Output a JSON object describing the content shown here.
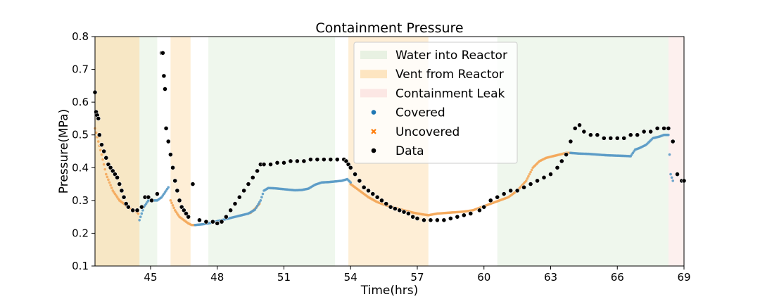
{
  "chart_data": {
    "type": "scatter",
    "title": "Containment Pressure",
    "xlabel": "Time(hrs)",
    "ylabel": "Pressure(MPa)",
    "xlim": [
      42.5,
      69
    ],
    "ylim": [
      0.1,
      0.8
    ],
    "xticks": [
      45,
      48,
      51,
      54,
      57,
      60,
      63,
      66,
      69
    ],
    "yticks": [
      0.1,
      0.2,
      0.3,
      0.4,
      0.5,
      0.6,
      0.7,
      0.8
    ],
    "grid": false,
    "legend_position": "top-center",
    "regions": [
      {
        "name": "Water into Reactor",
        "color": "#cde5c8",
        "spans": [
          [
            44.5,
            45.3
          ],
          [
            47.6,
            53.3
          ],
          [
            60.6,
            68.3
          ]
        ]
      },
      {
        "name": "Vent from Reactor",
        "color": "#fbc97f",
        "spans": [
          [
            42.5,
            44.5
          ],
          [
            45.9,
            46.8
          ],
          [
            53.9,
            57.5
          ]
        ]
      },
      {
        "name": "Containment Leak",
        "color": "#f8cfcb",
        "spans": [
          [
            68.3,
            69
          ]
        ]
      }
    ],
    "region_overlap": {
      "span": [
        42.5,
        44.5
      ],
      "color": "#f1e2b8"
    },
    "series": [
      {
        "name": "Covered",
        "marker": "circle",
        "color": "#1f77b4",
        "segments": [
          {
            "x": [
              44.5,
              44.7,
              44.9,
              45.1,
              45.3,
              45.5,
              45.7,
              45.8
            ],
            "y": [
              0.24,
              0.28,
              0.3,
              0.3,
              0.3,
              0.31,
              0.33,
              0.34
            ]
          },
          {
            "x": [
              47.0,
              47.3,
              47.6,
              47.9,
              48.2,
              48.5,
              48.8,
              49.1,
              49.4,
              49.7,
              49.95,
              50.1,
              50.3,
              50.6,
              50.9,
              51.2,
              51.5,
              51.8,
              52.1,
              52.4,
              52.7,
              53.0,
              53.3,
              53.6,
              53.85,
              54.0
            ],
            "y": [
              0.225,
              0.227,
              0.23,
              0.235,
              0.24,
              0.245,
              0.25,
              0.255,
              0.26,
              0.272,
              0.3,
              0.33,
              0.338,
              0.337,
              0.335,
              0.333,
              0.331,
              0.332,
              0.336,
              0.348,
              0.355,
              0.356,
              0.358,
              0.36,
              0.365,
              0.355
            ]
          },
          {
            "x": [
              63.9,
              64.3,
              64.7,
              65.1,
              65.5,
              65.9,
              66.3,
              66.6,
              66.8,
              67.0,
              67.3,
              67.6,
              67.9,
              68.1,
              68.3,
              68.4,
              68.5
            ],
            "y": [
              0.445,
              0.443,
              0.442,
              0.44,
              0.438,
              0.437,
              0.436,
              0.435,
              0.455,
              0.46,
              0.47,
              0.49,
              0.495,
              0.5,
              0.5,
              0.38,
              0.36
            ]
          }
        ]
      },
      {
        "name": "Uncovered",
        "marker": "x",
        "color": "#ff7f0e",
        "segments": [
          {
            "x": [
              42.5,
              42.8,
              43.0,
              43.3,
              43.6,
              43.9,
              44.1,
              44.3,
              44.45
            ],
            "y": [
              0.52,
              0.44,
              0.38,
              0.33,
              0.3,
              0.285,
              0.275,
              0.27,
              0.26
            ]
          },
          {
            "x": [
              45.9,
              46.1,
              46.3,
              46.5,
              46.7,
              46.85,
              47.0
            ],
            "y": [
              0.3,
              0.27,
              0.25,
              0.24,
              0.23,
              0.225,
              0.225
            ]
          },
          {
            "x": [
              49.5,
              49.7,
              49.9
            ],
            "y": [
              0.262,
              0.275,
              0.29
            ]
          },
          {
            "x": [
              54.0,
              54.4,
              54.8,
              55.2,
              55.6,
              56.0,
              56.4,
              56.8,
              57.2,
              57.5,
              57.9,
              58.3,
              58.7,
              59.1,
              59.5,
              59.9,
              60.3,
              60.7,
              61.1,
              61.5,
              61.9,
              62.2,
              62.5,
              62.8,
              63.1,
              63.4,
              63.7,
              63.9
            ],
            "y": [
              0.35,
              0.33,
              0.31,
              0.295,
              0.285,
              0.278,
              0.27,
              0.263,
              0.258,
              0.255,
              0.26,
              0.262,
              0.264,
              0.266,
              0.27,
              0.28,
              0.29,
              0.3,
              0.31,
              0.33,
              0.36,
              0.4,
              0.42,
              0.43,
              0.435,
              0.44,
              0.445,
              0.445
            ]
          }
        ]
      },
      {
        "name": "Data",
        "marker": "dot",
        "color": "#000000",
        "x": [
          42.5,
          42.55,
          42.6,
          42.65,
          42.7,
          42.8,
          42.9,
          43.0,
          43.1,
          43.2,
          43.3,
          43.4,
          43.5,
          43.6,
          43.7,
          43.8,
          43.9,
          44.0,
          44.2,
          44.4,
          44.6,
          44.75,
          44.9,
          45.05,
          45.3,
          45.5,
          45.55,
          45.6,
          45.65,
          45.7,
          45.8,
          45.9,
          46.0,
          46.1,
          46.2,
          46.3,
          46.4,
          46.5,
          46.6,
          46.7,
          46.9,
          47.2,
          47.5,
          47.8,
          48.0,
          48.2,
          48.4,
          48.6,
          48.8,
          49.0,
          49.2,
          49.4,
          49.6,
          49.8,
          49.95,
          50.1,
          50.4,
          50.7,
          51.0,
          51.3,
          51.6,
          51.9,
          52.2,
          52.5,
          52.8,
          53.1,
          53.4,
          53.7,
          53.8,
          53.9,
          54.0,
          54.2,
          54.4,
          54.6,
          54.8,
          55.0,
          55.2,
          55.4,
          55.6,
          55.8,
          56.0,
          56.2,
          56.4,
          56.6,
          56.8,
          57.0,
          57.3,
          57.6,
          57.9,
          58.2,
          58.5,
          58.8,
          59.1,
          59.4,
          59.8,
          60.0,
          60.3,
          60.6,
          60.9,
          61.2,
          61.5,
          61.8,
          62.1,
          62.4,
          62.7,
          63.0,
          63.3,
          63.5,
          63.7,
          63.9,
          64.1,
          64.3,
          64.5,
          64.8,
          65.1,
          65.4,
          65.7,
          66.0,
          66.3,
          66.6,
          66.9,
          67.2,
          67.5,
          67.8,
          68.1,
          68.3,
          68.5,
          68.7,
          68.9,
          69.0
        ],
        "y": [
          0.63,
          0.57,
          0.56,
          0.55,
          0.5,
          0.47,
          0.45,
          0.43,
          0.41,
          0.4,
          0.39,
          0.38,
          0.37,
          0.35,
          0.33,
          0.31,
          0.29,
          0.28,
          0.27,
          0.27,
          0.28,
          0.31,
          0.31,
          0.3,
          0.32,
          0.75,
          0.75,
          0.68,
          0.64,
          0.52,
          0.48,
          0.44,
          0.4,
          0.36,
          0.33,
          0.3,
          0.28,
          0.27,
          0.26,
          0.25,
          0.35,
          0.24,
          0.235,
          0.235,
          0.23,
          0.235,
          0.25,
          0.27,
          0.29,
          0.31,
          0.33,
          0.35,
          0.37,
          0.39,
          0.41,
          0.41,
          0.41,
          0.415,
          0.415,
          0.42,
          0.42,
          0.42,
          0.425,
          0.425,
          0.425,
          0.425,
          0.425,
          0.425,
          0.42,
          0.41,
          0.4,
          0.38,
          0.36,
          0.34,
          0.33,
          0.32,
          0.31,
          0.3,
          0.29,
          0.28,
          0.275,
          0.27,
          0.265,
          0.26,
          0.25,
          0.245,
          0.24,
          0.24,
          0.24,
          0.24,
          0.245,
          0.25,
          0.255,
          0.26,
          0.27,
          0.28,
          0.3,
          0.31,
          0.32,
          0.33,
          0.33,
          0.34,
          0.35,
          0.36,
          0.37,
          0.38,
          0.4,
          0.42,
          0.44,
          0.48,
          0.52,
          0.53,
          0.51,
          0.5,
          0.5,
          0.49,
          0.49,
          0.49,
          0.49,
          0.5,
          0.5,
          0.51,
          0.51,
          0.52,
          0.52,
          0.52,
          0.48,
          0.38,
          0.36,
          0.36
        ]
      }
    ]
  }
}
